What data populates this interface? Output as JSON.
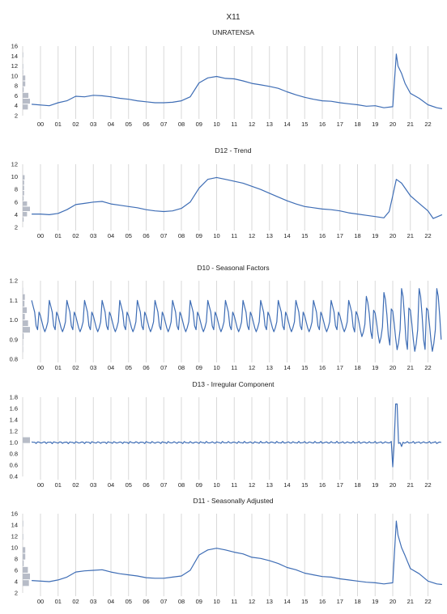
{
  "title": "X11",
  "colors": {
    "line": "#3e6db5",
    "grid": "#d9d9d9",
    "hist": "#b7bcc7",
    "text": "#222222"
  },
  "x_ticks": [
    "00",
    "01",
    "02",
    "03",
    "04",
    "05",
    "06",
    "07",
    "08",
    "09",
    "10",
    "11",
    "12",
    "13",
    "14",
    "15",
    "16",
    "17",
    "18",
    "19",
    "20",
    "21",
    "22"
  ],
  "chart_data": [
    {
      "type": "line",
      "title": "UNRATENSA",
      "ylim": [
        2,
        16
      ],
      "yticks": [
        2,
        4,
        6,
        8,
        10,
        12,
        14,
        16
      ],
      "x_start": 1999.5,
      "x_end": 2022.8,
      "grid": true,
      "series": [
        {
          "x": [
            1999.5,
            2000.5,
            2001.0,
            2001.5,
            2002.0,
            2002.5,
            2003.0,
            2003.5,
            2004.0,
            2004.5,
            2005.0,
            2005.5,
            2006.0,
            2006.5,
            2007.0,
            2007.5,
            2008.0,
            2008.5,
            2009.0,
            2009.5,
            2010.0,
            2010.5,
            2011.0,
            2011.5,
            2012.0,
            2012.5,
            2013.0,
            2013.5,
            2014.0,
            2014.5,
            2015.0,
            2015.5,
            2016.0,
            2016.5,
            2017.0,
            2017.5,
            2018.0,
            2018.5,
            2019.0,
            2019.5,
            2020.0,
            2020.2,
            2020.3,
            2020.5,
            2020.7,
            2021.0,
            2021.5,
            2022.0,
            2022.5,
            2022.8
          ],
          "y": [
            4.3,
            4.0,
            4.6,
            5.0,
            5.9,
            5.8,
            6.1,
            6.0,
            5.8,
            5.5,
            5.3,
            5.0,
            4.8,
            4.6,
            4.6,
            4.7,
            5.0,
            5.8,
            8.6,
            9.6,
            9.9,
            9.5,
            9.4,
            9.0,
            8.5,
            8.2,
            7.9,
            7.5,
            6.8,
            6.2,
            5.7,
            5.3,
            5.0,
            4.9,
            4.6,
            4.4,
            4.2,
            3.9,
            4.0,
            3.6,
            3.8,
            14.4,
            12.0,
            10.5,
            8.5,
            6.5,
            5.5,
            4.2,
            3.6,
            3.4
          ]
        }
      ]
    },
    {
      "type": "line",
      "title": "D12 - Trend",
      "ylim": [
        2,
        12
      ],
      "yticks": [
        2,
        4,
        6,
        8,
        10,
        12
      ],
      "x_start": 1999.5,
      "x_end": 2022.8,
      "grid": true,
      "series": [
        {
          "x": [
            1999.5,
            2000.0,
            2000.5,
            2001.0,
            2001.5,
            2002.0,
            2002.5,
            2003.0,
            2003.5,
            2004.0,
            2004.5,
            2005.0,
            2005.5,
            2006.0,
            2006.5,
            2007.0,
            2007.5,
            2008.0,
            2008.5,
            2009.0,
            2009.5,
            2010.0,
            2010.5,
            2011.0,
            2011.5,
            2012.0,
            2012.5,
            2013.0,
            2013.5,
            2014.0,
            2014.5,
            2015.0,
            2015.5,
            2016.0,
            2016.5,
            2017.0,
            2017.5,
            2018.0,
            2018.5,
            2019.0,
            2019.5,
            2019.8,
            2020.0,
            2020.2,
            2020.5,
            2021.0,
            2021.5,
            2022.0,
            2022.3,
            2022.8
          ],
          "y": [
            4.1,
            4.1,
            4.0,
            4.2,
            4.8,
            5.6,
            5.8,
            6.0,
            6.1,
            5.7,
            5.5,
            5.3,
            5.1,
            4.8,
            4.6,
            4.5,
            4.6,
            5.0,
            6.0,
            8.2,
            9.6,
            9.9,
            9.6,
            9.3,
            9.0,
            8.5,
            8.0,
            7.4,
            6.8,
            6.2,
            5.7,
            5.3,
            5.1,
            4.9,
            4.8,
            4.6,
            4.3,
            4.1,
            3.9,
            3.7,
            3.5,
            4.5,
            7.0,
            9.6,
            9.0,
            7.0,
            5.8,
            4.6,
            3.4,
            4.0
          ]
        }
      ]
    },
    {
      "type": "line",
      "title": "D10 - Seasonal Factors",
      "ylim": [
        0.8,
        1.2
      ],
      "yticks": [
        "0.8",
        "0.9",
        "1.0",
        "1.1",
        "1.2"
      ],
      "x_start": 1999.5,
      "x_end": 2022.8,
      "grid": true,
      "seasonal_pattern": [
        1.1,
        1.07,
        1.04,
        0.97,
        0.95,
        1.04,
        1.02,
        0.99,
        0.96,
        0.94,
        0.96,
        0.99
      ],
      "late_pattern": [
        1.16,
        1.12,
        1.02,
        0.9,
        0.85,
        1.06,
        1.05,
        0.98,
        0.9,
        0.84,
        0.88,
        0.95
      ],
      "late_start": 2017.5
    },
    {
      "type": "line",
      "title": "D13 - Irregular Component",
      "ylim": [
        0.4,
        1.8
      ],
      "yticks": [
        "0.4",
        "0.6",
        "0.8",
        "1.0",
        "1.2",
        "1.4",
        "1.6",
        "1.8"
      ],
      "x_start": 1999.5,
      "x_end": 2022.8,
      "grid": true,
      "baseline": 1.0,
      "spikes": [
        {
          "x": 2020.0,
          "y": 0.57
        },
        {
          "x": 2020.2,
          "y": 1.68
        },
        {
          "x": 2020.5,
          "y": 0.93
        }
      ]
    },
    {
      "type": "line",
      "title": "D11 - Seasonally Adjusted",
      "ylim": [
        2,
        16
      ],
      "yticks": [
        2,
        4,
        6,
        8,
        10,
        12,
        14,
        16
      ],
      "x_start": 1999.5,
      "x_end": 2022.8,
      "grid": true,
      "series": [
        {
          "x": [
            1999.5,
            2000.5,
            2001.0,
            2001.5,
            2002.0,
            2002.5,
            2003.0,
            2003.5,
            2004.0,
            2004.5,
            2005.0,
            2005.5,
            2006.0,
            2006.5,
            2007.0,
            2007.5,
            2008.0,
            2008.5,
            2009.0,
            2009.5,
            2010.0,
            2010.5,
            2011.0,
            2011.5,
            2012.0,
            2012.5,
            2013.0,
            2013.5,
            2014.0,
            2014.5,
            2015.0,
            2015.5,
            2016.0,
            2016.5,
            2017.0,
            2017.5,
            2018.0,
            2018.5,
            2019.0,
            2019.5,
            2020.0,
            2020.2,
            2020.3,
            2020.5,
            2020.7,
            2021.0,
            2021.5,
            2022.0,
            2022.5,
            2022.8
          ],
          "y": [
            4.2,
            4.0,
            4.3,
            4.8,
            5.7,
            5.9,
            6.0,
            6.1,
            5.7,
            5.4,
            5.2,
            5.0,
            4.7,
            4.6,
            4.6,
            4.8,
            5.0,
            6.0,
            8.7,
            9.6,
            9.9,
            9.6,
            9.2,
            8.9,
            8.3,
            8.1,
            7.7,
            7.2,
            6.5,
            6.1,
            5.5,
            5.2,
            4.9,
            4.8,
            4.5,
            4.3,
            4.1,
            3.9,
            3.8,
            3.6,
            3.8,
            14.7,
            12.2,
            10.0,
            8.6,
            6.3,
            5.4,
            4.1,
            3.6,
            3.5
          ]
        }
      ]
    }
  ]
}
